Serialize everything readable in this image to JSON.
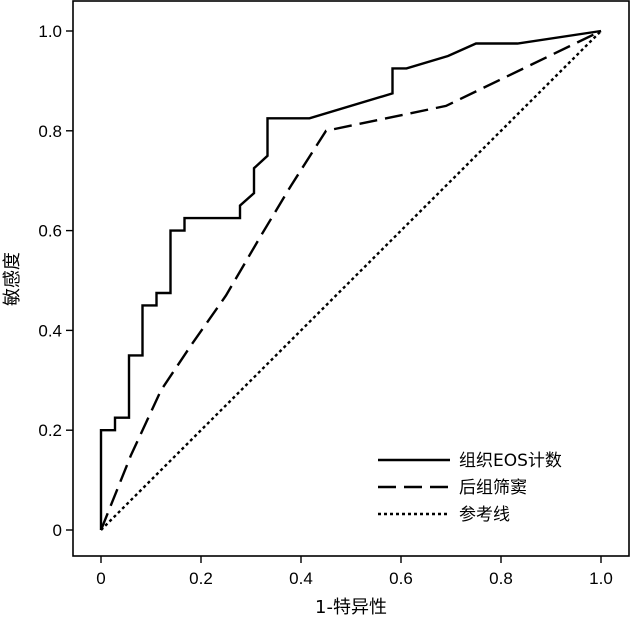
{
  "chart_data": {
    "type": "line",
    "xlabel": "1-特异性",
    "ylabel": "敏感度",
    "xlim": [
      0,
      1
    ],
    "ylim": [
      0,
      1
    ],
    "x_ticks": [
      "0",
      "0.2",
      "0.4",
      "0.6",
      "0.8",
      "1.0"
    ],
    "y_ticks": [
      "0",
      "0.2",
      "0.4",
      "0.6",
      "0.8",
      "1.0"
    ],
    "grid": false,
    "legend_position": "bottom-right",
    "series": [
      {
        "name": "组织EOS计数",
        "style": "solid",
        "color": "#000000",
        "points": [
          [
            0,
            0
          ],
          [
            0,
            0.2
          ],
          [
            0.028,
            0.2
          ],
          [
            0.028,
            0.225
          ],
          [
            0.056,
            0.225
          ],
          [
            0.056,
            0.35
          ],
          [
            0.083,
            0.35
          ],
          [
            0.083,
            0.45
          ],
          [
            0.111,
            0.45
          ],
          [
            0.111,
            0.475
          ],
          [
            0.139,
            0.475
          ],
          [
            0.139,
            0.6
          ],
          [
            0.167,
            0.6
          ],
          [
            0.167,
            0.625
          ],
          [
            0.278,
            0.625
          ],
          [
            0.278,
            0.65
          ],
          [
            0.306,
            0.675
          ],
          [
            0.306,
            0.725
          ],
          [
            0.333,
            0.75
          ],
          [
            0.333,
            0.825
          ],
          [
            0.417,
            0.825
          ],
          [
            0.583,
            0.875
          ],
          [
            0.583,
            0.925
          ],
          [
            0.611,
            0.925
          ],
          [
            0.694,
            0.95
          ],
          [
            0.75,
            0.975
          ],
          [
            0.833,
            0.975
          ],
          [
            1.0,
            1.0
          ]
        ]
      },
      {
        "name": "后组筛窦",
        "style": "dashed",
        "color": "#000000",
        "points": [
          [
            0,
            0
          ],
          [
            0.06,
            0.15
          ],
          [
            0.12,
            0.28
          ],
          [
            0.18,
            0.37
          ],
          [
            0.25,
            0.47
          ],
          [
            0.32,
            0.59
          ],
          [
            0.38,
            0.69
          ],
          [
            0.45,
            0.8
          ],
          [
            0.69,
            0.85
          ],
          [
            1.0,
            1.0
          ]
        ]
      },
      {
        "name": "参考线",
        "style": "dotted",
        "color": "#000000",
        "points": [
          [
            0,
            0
          ],
          [
            1,
            1
          ]
        ]
      }
    ]
  }
}
